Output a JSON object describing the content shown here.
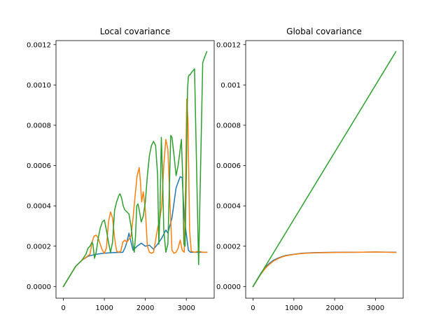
{
  "chart_data": [
    {
      "type": "line",
      "title": "Local covariance",
      "xlabel": "",
      "ylabel": "",
      "xlim": [
        -180,
        3680
      ],
      "ylim": [
        -5.8e-05,
        0.00122
      ],
      "xticks": [
        0,
        1000,
        2000,
        3000
      ],
      "xtick_labels": [
        "0",
        "1000",
        "2000",
        "3000"
      ],
      "yticks": [
        0,
        0.0002,
        0.0004,
        0.0006,
        0.0008,
        0.001,
        0.0012
      ],
      "ytick_labels": [
        "0.0000",
        "0.0002",
        "0.0004",
        "0.0006",
        "0.0008",
        "0.0010",
        "0.0012"
      ],
      "series": [
        {
          "name": "series-1",
          "color": "#1f77b4",
          "x": [
            0,
            150,
            300,
            450,
            600,
            750,
            900,
            1050,
            1200,
            1350,
            1450,
            1500,
            1550,
            1600,
            1650,
            1700,
            1750,
            1800,
            1900,
            2000,
            2100,
            2200,
            2300,
            2400,
            2500,
            2550,
            2650,
            2750,
            2850,
            2900,
            2950,
            3000,
            3050,
            3100,
            3200,
            3300,
            3400,
            3500
          ],
          "y": [
            0,
            5e-05,
            0.0001,
            0.00013,
            0.00015,
            0.000158,
            0.000163,
            0.000166,
            0.000168,
            0.000169,
            0.00017,
            0.00019,
            0.00022,
            0.000265,
            0.00022,
            0.00018,
            0.00019,
            0.0002,
            0.000215,
            0.0002,
            0.000205,
            0.000185,
            0.00021,
            0.00024,
            0.00028,
            0.000265,
            0.00034,
            0.00049,
            0.000545,
            0.00054,
            0.00034,
            0.00026,
            0.00018,
            0.00017,
            0.00017,
            0.00017,
            0.00017,
            0.00017
          ]
        },
        {
          "name": "series-2",
          "color": "#ff7f0e",
          "x": [
            0,
            150,
            300,
            450,
            550,
            650,
            700,
            750,
            800,
            850,
            900,
            950,
            1000,
            1050,
            1100,
            1150,
            1200,
            1250,
            1300,
            1350,
            1400,
            1450,
            1500,
            1550,
            1600,
            1650,
            1700,
            1750,
            1800,
            1850,
            1880,
            1910,
            1950,
            2000,
            2050,
            2100,
            2150,
            2200,
            2250,
            2300,
            2350,
            2400,
            2450,
            2500,
            2550,
            2600,
            2650,
            2700,
            2750,
            2800,
            2850,
            2900,
            2950,
            2980,
            3010,
            3040,
            3080,
            3120,
            3200,
            3300,
            3400,
            3500
          ],
          "y": [
            0,
            5e-05,
            0.0001,
            0.00013,
            0.000145,
            0.00016,
            0.00022,
            0.00025,
            0.000255,
            0.00024,
            0.00021,
            0.00018,
            0.000165,
            0.00019,
            0.00032,
            0.00037,
            0.00034,
            0.00024,
            0.000175,
            0.00017,
            0.000175,
            0.00022,
            0.00023,
            0.00022,
            0.000235,
            0.00025,
            0.00034,
            0.00045,
            0.00055,
            0.00059,
            0.00052,
            0.00042,
            0.00047,
            0.00038,
            0.0002,
            0.00017,
            0.000165,
            0.00017,
            0.00023,
            0.00029,
            0.00033,
            0.0004,
            0.0006,
            0.00073,
            0.00068,
            0.00042,
            0.00018,
            0.000165,
            0.00017,
            0.00019,
            0.00023,
            0.00018,
            0.00017,
            0.0005,
            0.00093,
            0.00082,
            0.00028,
            0.000175,
            0.00017,
            0.000175,
            0.00017,
            0.00017
          ]
        },
        {
          "name": "series-3",
          "color": "#2ca02c",
          "x": [
            0,
            150,
            300,
            450,
            550,
            600,
            650,
            700,
            720,
            760,
            800,
            850,
            900,
            950,
            1000,
            1050,
            1100,
            1150,
            1200,
            1250,
            1300,
            1350,
            1380,
            1420,
            1460,
            1500,
            1550,
            1600,
            1650,
            1700,
            1730,
            1760,
            1790,
            1820,
            1850,
            1900,
            1950,
            2000,
            2050,
            2100,
            2150,
            2200,
            2250,
            2300,
            2330,
            2360,
            2390,
            2420,
            2450,
            2500,
            2550,
            2600,
            2620,
            2650,
            2700,
            2750,
            2800,
            2850,
            2880,
            2910,
            2940,
            2970,
            3000,
            3030,
            3050,
            3070,
            3090,
            3120,
            3200,
            3300,
            3400,
            3450,
            3500
          ],
          "y": [
            0,
            5e-05,
            0.0001,
            0.00013,
            0.00016,
            0.00019,
            0.0002,
            0.00022,
            0.00021,
            0.00014,
            0.00017,
            0.00024,
            0.00029,
            0.00032,
            0.00033,
            0.00028,
            0.00022,
            0.00017,
            0.00022,
            0.00038,
            0.00042,
            0.00045,
            0.00046,
            0.00044,
            0.0004,
            0.00038,
            0.00037,
            0.00036,
            0.0003,
            0.00021,
            0.00017,
            0.00025,
            0.0004,
            0.00041,
            0.00038,
            0.00032,
            0.00035,
            0.00042,
            0.00055,
            0.00065,
            0.0007,
            0.00072,
            0.0007,
            0.00055,
            0.00021,
            0.0004,
            0.00074,
            0.00055,
            0.00028,
            0.00017,
            0.00021,
            0.0006,
            0.00075,
            0.00074,
            0.00065,
            0.00055,
            0.0006,
            0.00068,
            0.00073,
            0.00055,
            0.00021,
            0.0002,
            0.00055,
            0.00098,
            0.00104,
            0.00105,
            0.00105,
            0.00106,
            0.00108,
            0.0001085,
            0.00111,
            0.00114,
            0.001165
          ]
        }
      ]
    },
    {
      "type": "line",
      "title": "Global covariance",
      "xlabel": "",
      "ylabel": "",
      "xlim": [
        -180,
        3680
      ],
      "ylim": [
        -5.8e-05,
        0.00122
      ],
      "xticks": [
        0,
        1000,
        2000,
        3000
      ],
      "xtick_labels": [
        "0",
        "1000",
        "2000",
        "3000"
      ],
      "yticks": [
        0,
        0.0002,
        0.0004,
        0.0006,
        0.0008,
        0.001,
        0.0012
      ],
      "ytick_labels": [
        "0.0000",
        "0.0002",
        "0.0004",
        "0.0006",
        "0.0008",
        "0.001",
        "0.0012"
      ],
      "series": [
        {
          "name": "series-1",
          "color": "#1f77b4",
          "x": [
            0,
            100,
            200,
            300,
            400,
            500,
            600,
            700,
            800,
            1000,
            1200,
            1500,
            2000,
            2500,
            3000,
            3500
          ],
          "y": [
            0,
            3.5e-05,
            6.8e-05,
            9.5e-05,
            0.000115,
            0.00013,
            0.00014,
            0.000148,
            0.000154,
            0.00016,
            0.000165,
            0.000168,
            0.00017,
            0.00017,
            0.000171,
            0.00017
          ]
        },
        {
          "name": "series-2",
          "color": "#ff7f0e",
          "x": [
            0,
            100,
            200,
            300,
            400,
            500,
            600,
            700,
            800,
            1000,
            1200,
            1500,
            2000,
            2500,
            3000,
            3500
          ],
          "y": [
            0,
            3.3e-05,
            6.4e-05,
            9e-05,
            0.00011,
            0.000126,
            0.000137,
            0.000146,
            0.000152,
            0.000159,
            0.000164,
            0.000167,
            0.000169,
            0.00017,
            0.000171,
            0.000169
          ]
        },
        {
          "name": "series-3",
          "color": "#2ca02c",
          "x": [
            0,
            3500
          ],
          "y": [
            0,
            0.001165
          ]
        }
      ]
    }
  ]
}
